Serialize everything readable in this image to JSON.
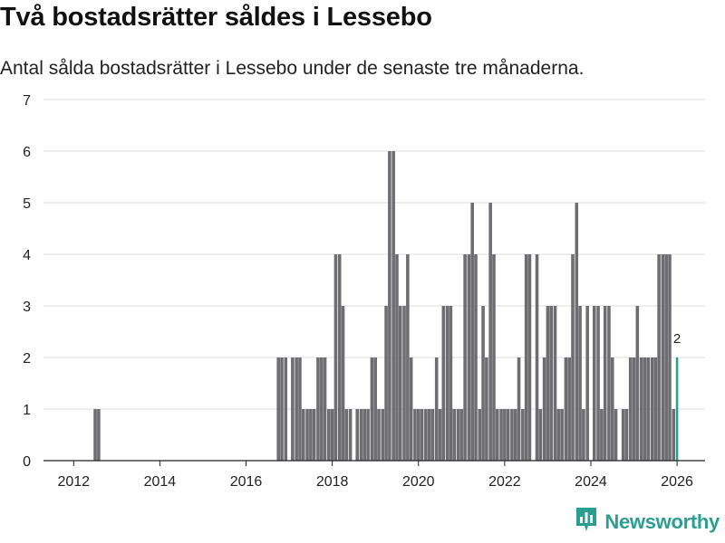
{
  "header": {
    "title": "Två bostadsrätter såldes i Lessebo",
    "subtitle": "Antal sålda bostadsrätter i Lessebo under de senaste tre månaderna."
  },
  "brand": {
    "name": "Newsworthy",
    "icon": "bar-chart-logo-icon",
    "color": "#2a9e8f"
  },
  "chart_data": {
    "type": "bar",
    "title": "Två bostadsrätter såldes i Lessebo",
    "subtitle": "Antal sålda bostadsrätter i Lessebo under de senaste tre månaderna.",
    "xlabel": "",
    "ylabel": "",
    "x_unit": "year",
    "xlim": [
      2011.3,
      2026.65
    ],
    "ylim": [
      0,
      7
    ],
    "x_ticks": [
      "2012",
      "2014",
      "2016",
      "2018",
      "2020",
      "2022",
      "2024",
      "2026"
    ],
    "y_ticks": [
      "0",
      "1",
      "2",
      "3",
      "4",
      "5",
      "6",
      "7"
    ],
    "grid": "horizontal",
    "bar_color": "#6d6d72",
    "highlight_color": "#2a9e8f",
    "highlight_label": "2",
    "series": [
      {
        "name": "Antal sålda bostadsrätter",
        "x": [
          2012.5,
          2012.58,
          2016.75,
          2016.83,
          2016.92,
          2017.08,
          2017.17,
          2017.25,
          2017.33,
          2017.42,
          2017.5,
          2017.58,
          2017.67,
          2017.75,
          2017.83,
          2017.92,
          2018.0,
          2018.08,
          2018.17,
          2018.25,
          2018.33,
          2018.42,
          2018.58,
          2018.67,
          2018.75,
          2018.83,
          2018.92,
          2019.0,
          2019.08,
          2019.17,
          2019.25,
          2019.33,
          2019.42,
          2019.5,
          2019.58,
          2019.67,
          2019.75,
          2019.83,
          2019.92,
          2020.0,
          2020.08,
          2020.17,
          2020.25,
          2020.33,
          2020.42,
          2020.5,
          2020.58,
          2020.67,
          2020.75,
          2020.83,
          2020.92,
          2021.0,
          2021.08,
          2021.17,
          2021.25,
          2021.33,
          2021.42,
          2021.5,
          2021.58,
          2021.67,
          2021.75,
          2021.83,
          2021.92,
          2022.0,
          2022.08,
          2022.17,
          2022.25,
          2022.33,
          2022.42,
          2022.5,
          2022.58,
          2022.75,
          2022.83,
          2022.92,
          2023.0,
          2023.08,
          2023.17,
          2023.25,
          2023.33,
          2023.42,
          2023.5,
          2023.58,
          2023.67,
          2023.75,
          2023.83,
          2023.92,
          2024.08,
          2024.17,
          2024.25,
          2024.33,
          2024.42,
          2024.5,
          2024.58,
          2024.75,
          2024.83,
          2024.92,
          2025.0,
          2025.08,
          2025.17,
          2025.25,
          2025.33,
          2025.42,
          2025.5,
          2025.58,
          2025.67,
          2025.75,
          2025.83,
          2025.92,
          2026.0
        ],
        "values": [
          1,
          1,
          2,
          2,
          2,
          2,
          2,
          2,
          1,
          1,
          1,
          1,
          2,
          2,
          2,
          1,
          1,
          4,
          4,
          3,
          1,
          1,
          1,
          1,
          1,
          1,
          2,
          2,
          1,
          1,
          3,
          6,
          6,
          4,
          3,
          3,
          4,
          2,
          1,
          1,
          1,
          1,
          1,
          1,
          2,
          1,
          3,
          3,
          3,
          1,
          1,
          1,
          4,
          4,
          5,
          4,
          1,
          3,
          2,
          5,
          4,
          1,
          1,
          1,
          1,
          1,
          1,
          2,
          1,
          4,
          4,
          4,
          1,
          2,
          3,
          3,
          3,
          1,
          1,
          2,
          2,
          4,
          5,
          3,
          1,
          3,
          3,
          3,
          1,
          3,
          3,
          2,
          1,
          1,
          1,
          2,
          2,
          3,
          2,
          2,
          2,
          2,
          2,
          4,
          4,
          4,
          4,
          1,
          2
        ]
      }
    ]
  }
}
